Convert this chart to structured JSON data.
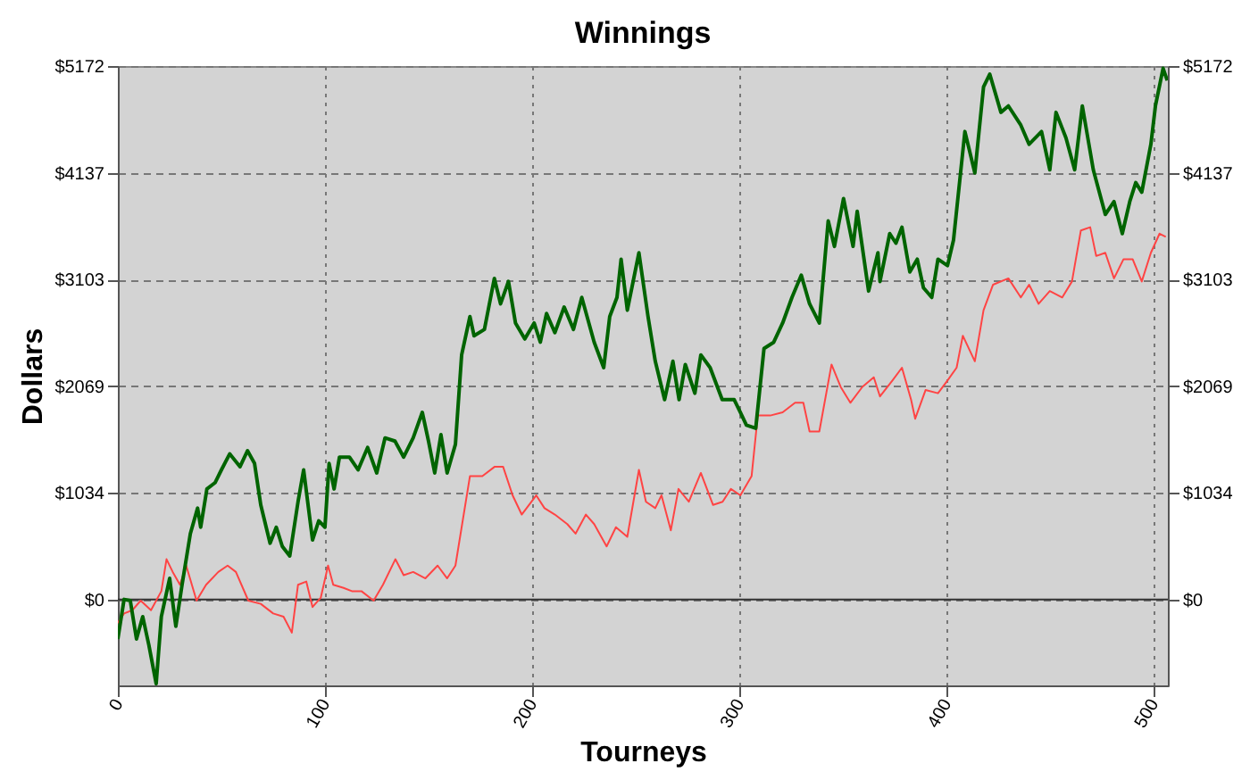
{
  "chart_data": {
    "type": "line",
    "title": "Winnings",
    "xlabel": "Tourneys",
    "ylabel": "Dollars",
    "xlim": [
      0,
      507
    ],
    "xticks": [
      0,
      100,
      200,
      300,
      400,
      500
    ],
    "ylim": [
      -834,
      5172
    ],
    "yticks": [
      {
        "value": 0,
        "label": "$0"
      },
      {
        "value": 1034,
        "label": "$1034"
      },
      {
        "value": 2069,
        "label": "$2069"
      },
      {
        "value": 3103,
        "label": "$3103"
      },
      {
        "value": 4137,
        "label": "$4137"
      },
      {
        "value": 5172,
        "label": "$5172"
      }
    ],
    "y2lim": [
      -834,
      5172
    ],
    "y2ticks": [
      {
        "value": 0,
        "label": "$0"
      },
      {
        "value": 1034,
        "label": "$1034"
      },
      {
        "value": 2069,
        "label": "$2069"
      },
      {
        "value": 3103,
        "label": "$3103"
      },
      {
        "value": 4137,
        "label": "$4137"
      },
      {
        "value": 5172,
        "label": "$5172"
      }
    ],
    "grid": true,
    "marker": "none",
    "line_style": "solid",
    "ref_lines": [
      {
        "axis": "y",
        "value": 0,
        "color": "#333333",
        "line_style": "solid"
      }
    ],
    "series": [
      {
        "color": "#ff4444",
        "x": [
          0,
          3,
          7,
          11,
          16,
          21,
          23.5,
          26.5,
          30,
          33,
          38,
          42.6,
          48.5,
          53,
          57,
          63,
          69,
          75,
          80,
          84,
          87,
          91,
          94,
          98,
          101.5,
          104,
          109,
          113,
          117.6,
          123.5,
          128,
          134,
          138,
          142.6,
          148.5,
          154.4,
          159,
          163,
          166,
          170,
          176,
          182,
          186,
          190.6,
          195,
          202,
          206,
          211,
          217,
          221,
          226,
          230,
          236,
          240.5,
          246,
          251.6,
          255,
          259.5,
          262.5,
          267,
          270.7,
          275.7,
          281.5,
          287.4,
          292,
          296,
          300.6,
          306,
          309,
          315,
          321,
          327,
          331,
          334,
          338.7,
          344.6,
          349,
          353.7,
          359.5,
          365,
          368,
          374,
          378.6,
          383,
          385,
          390,
          396,
          400.6,
          405,
          408,
          413.8,
          418,
          422.6,
          430,
          436,
          440,
          444.6,
          450,
          456,
          460.7,
          465,
          469.5,
          472.4,
          476.8,
          481,
          485.6,
          490,
          494.4,
          498.8,
          503,
          506
        ],
        "values": [
          -229,
          -136,
          -105,
          -12,
          -105,
          80,
          390,
          266,
          142,
          328,
          -12,
          142,
          266,
          328,
          266,
          -12,
          -43,
          -136,
          -167,
          -322,
          142,
          173,
          -74,
          18,
          328,
          142,
          111,
          80,
          80,
          -12,
          142,
          390,
          235,
          266,
          204,
          328,
          204,
          328,
          700,
          1195,
          1195,
          1287,
          1287,
          1009,
          823,
          1009,
          885,
          823,
          730,
          638,
          823,
          730,
          514,
          700,
          607,
          1256,
          947,
          885,
          1009,
          669,
          1071,
          947,
          1226,
          916,
          947,
          1071,
          1009,
          1195,
          1783,
          1783,
          1814,
          1907,
          1907,
          1628,
          1628,
          2278,
          2061,
          1907,
          2061,
          2154,
          1968,
          2123,
          2247,
          1937,
          1752,
          2030,
          1999,
          2123,
          2247,
          2557,
          2309,
          2804,
          3052,
          3113,
          2928,
          3052,
          2866,
          2990,
          2928,
          3083,
          3578,
          3609,
          3330,
          3361,
          3113,
          3299,
          3299,
          3083,
          3361,
          3547,
          3516
        ]
      },
      {
        "color": "#006400",
        "x": [
          0,
          3,
          6,
          9,
          12,
          15,
          18.5,
          21,
          25,
          28,
          31,
          35,
          38.5,
          40,
          43,
          47,
          50,
          54,
          59,
          62.6,
          66,
          69,
          73.5,
          76.5,
          79.4,
          83,
          87,
          89.7,
          94,
          97,
          100,
          102,
          104.4,
          107,
          111.8,
          116,
          120.6,
          125,
          129,
          133.8,
          138,
          142.6,
          147,
          150,
          153,
          156,
          159,
          163,
          166,
          170,
          172,
          177,
          181.8,
          184.8,
          188.6,
          192,
          196.5,
          201,
          204,
          207,
          211,
          215.5,
          220,
          224,
          230,
          234.6,
          237.5,
          241,
          243,
          246,
          251.6,
          256,
          259.5,
          264,
          268,
          271,
          274,
          278.6,
          281.5,
          286,
          291.8,
          297.6,
          300.6,
          303.5,
          308,
          312,
          316.7,
          321,
          325.5,
          330,
          334,
          338.7,
          343,
          346,
          350.4,
          355,
          357,
          362.5,
          367,
          368,
          372.7,
          375.7,
          378.6,
          382.4,
          386,
          389,
          393,
          396,
          400.6,
          403.5,
          409,
          413.8,
          418,
          421,
          426.4,
          430,
          436,
          440,
          446,
          450,
          453,
          457.8,
          462,
          465.7,
          471,
          476.8,
          481,
          485,
          488.6,
          491.5,
          494.4,
          498.8,
          501,
          504.7,
          506.7
        ],
        "values": [
          -384,
          0,
          -12,
          -384,
          -167,
          -446,
          -817,
          -167,
          204,
          -260,
          142,
          637,
          885,
          700,
          1071,
          1133,
          1256,
          1411,
          1287,
          1442,
          1318,
          916,
          545,
          700,
          514,
          421,
          947,
          1256,
          576,
          762,
          700,
          1318,
          1071,
          1380,
          1380,
          1256,
          1473,
          1226,
          1566,
          1535,
          1380,
          1566,
          1814,
          1535,
          1226,
          1597,
          1226,
          1504,
          2371,
          2742,
          2556,
          2618,
          3113,
          2866,
          3083,
          2680,
          2525,
          2680,
          2494,
          2773,
          2587,
          2835,
          2618,
          2928,
          2494,
          2247,
          2742,
          2928,
          3299,
          2804,
          3361,
          2742,
          2309,
          1937,
          2309,
          1937,
          2278,
          1999,
          2371,
          2247,
          1937,
          1937,
          1814,
          1690,
          1659,
          2433,
          2494,
          2680,
          2928,
          3144,
          2866,
          2680,
          3671,
          3423,
          3887,
          3423,
          3763,
          2990,
          3361,
          3083,
          3547,
          3454,
          3609,
          3175,
          3299,
          3021,
          2928,
          3299,
          3237,
          3485,
          4537,
          4135,
          4970,
          5094,
          4723,
          4785,
          4599,
          4413,
          4537,
          4166,
          4723,
          4475,
          4166,
          4785,
          4166,
          3733,
          3857,
          3547,
          3857,
          4042,
          3949,
          4413,
          4785,
          5150,
          5032
        ]
      }
    ]
  }
}
